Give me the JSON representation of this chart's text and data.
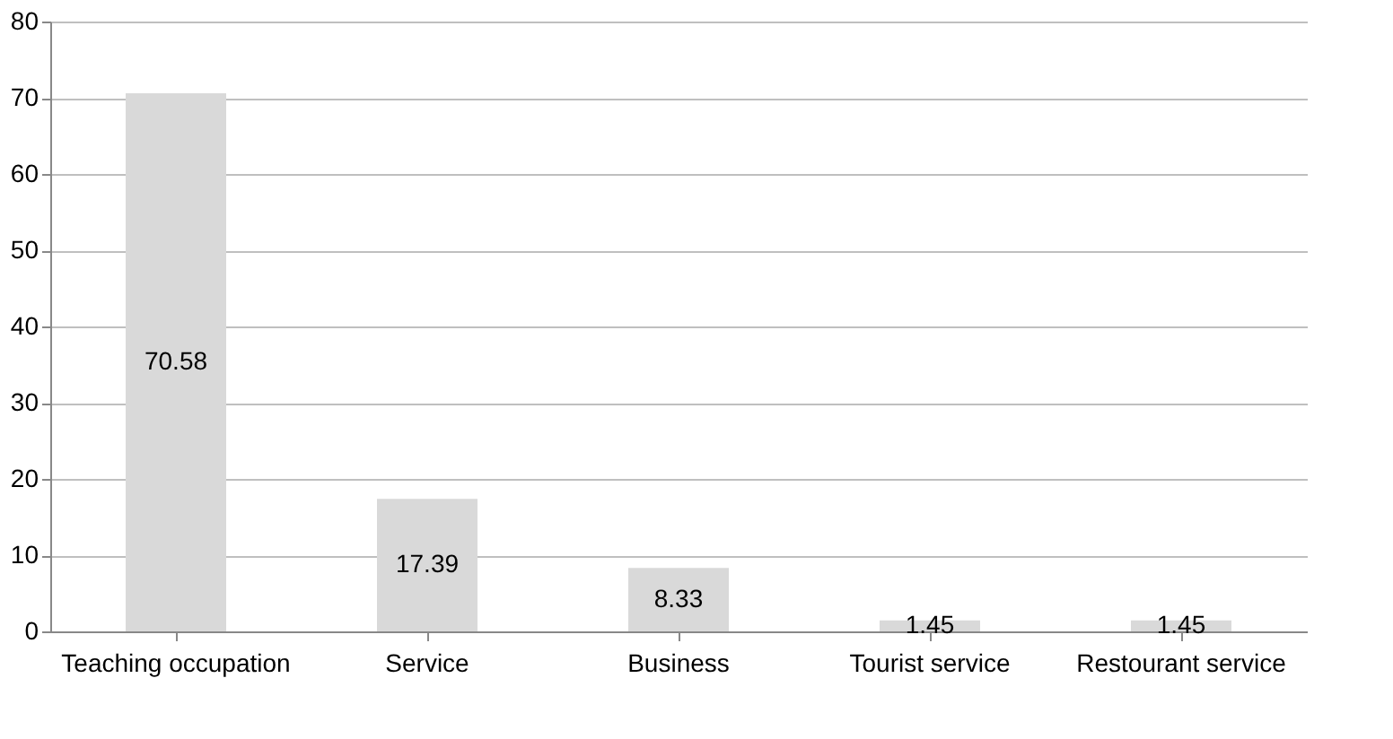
{
  "chart_data": {
    "type": "bar",
    "categories": [
      "Teaching occupation",
      "Service",
      "Business",
      "Tourist service",
      "Restourant service"
    ],
    "values": [
      70.58,
      17.39,
      8.33,
      1.45,
      1.45
    ],
    "color": "#d9d9d9",
    "ylim": [
      0,
      80
    ],
    "yticks": [
      0,
      10,
      20,
      30,
      40,
      50,
      60,
      70,
      80
    ],
    "grid": "y",
    "data_labels": true
  }
}
